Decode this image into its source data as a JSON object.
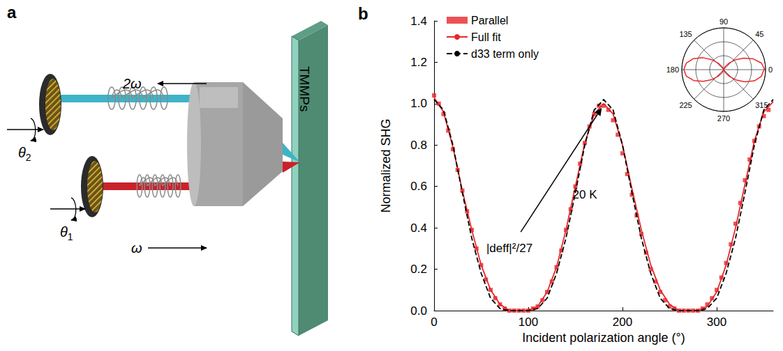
{
  "diagram": {
    "panel_label": "a",
    "beam_out": "2ω",
    "beam_in": "ω",
    "angle_out": "θ2",
    "angle_in": "θ1",
    "sample": "TMMPs"
  },
  "chart_data": {
    "type": "line",
    "panel_label": "b",
    "x_label": "Incident polarization angle (°)",
    "y_label": "Normalized SHG",
    "xlim": [
      0,
      360
    ],
    "xticks": [
      0,
      100,
      200,
      300
    ],
    "ylim": [
      0,
      1.4
    ],
    "yticks": [
      {
        "value": 0,
        "label": "0.0"
      },
      0.2,
      0.4,
      0.6,
      0.8,
      {
        "value": 1,
        "label": "1.0"
      },
      1.2,
      1.4
    ],
    "grid": false,
    "legend": "top-left",
    "series": [
      {
        "name": "Parallel",
        "type": "scatter",
        "marker": "square",
        "color": "#e8262a",
        "x": [
          0,
          5,
          10,
          15,
          20,
          25,
          30,
          35,
          40,
          45,
          50,
          55,
          60,
          65,
          70,
          75,
          80,
          85,
          90,
          95,
          100,
          105,
          110,
          115,
          120,
          125,
          130,
          135,
          140,
          145,
          150,
          155,
          160,
          165,
          170,
          175,
          180,
          185,
          190,
          195,
          200,
          205,
          210,
          215,
          220,
          225,
          230,
          235,
          240,
          245,
          250,
          255,
          260,
          265,
          270,
          275,
          280,
          285,
          290,
          295,
          300,
          305,
          310,
          315,
          320,
          325,
          330,
          335,
          340,
          345,
          350,
          355
        ],
        "values": [
          1.04,
          1.0,
          0.95,
          0.87,
          0.78,
          0.68,
          0.58,
          0.48,
          0.39,
          0.3,
          0.22,
          0.15,
          0.1,
          0.06,
          0.03,
          0.01,
          0,
          0,
          0,
          0,
          0,
          0.01,
          0.02,
          0.05,
          0.09,
          0.14,
          0.21,
          0.29,
          0.39,
          0.49,
          0.6,
          0.71,
          0.81,
          0.89,
          0.95,
          0.99,
          0.99,
          0.97,
          0.92,
          0.85,
          0.76,
          0.66,
          0.56,
          0.46,
          0.37,
          0.28,
          0.2,
          0.14,
          0.09,
          0.05,
          0.02,
          0.01,
          0,
          0,
          0,
          0,
          0,
          0.01,
          0.03,
          0.06,
          0.1,
          0.16,
          0.23,
          0.32,
          0.42,
          0.52,
          0.63,
          0.73,
          0.82,
          0.89,
          0.94,
          0.97
        ]
      },
      {
        "name": "Full fit",
        "type": "line",
        "line_style": "solid",
        "color": "#e8262a",
        "x": [
          0,
          10,
          20,
          30,
          40,
          50,
          60,
          70,
          80,
          90,
          100,
          110,
          120,
          130,
          140,
          150,
          160,
          170,
          180,
          190,
          200,
          210,
          220,
          230,
          240,
          250,
          260,
          270,
          280,
          290,
          300,
          310,
          320,
          330,
          340,
          350,
          360
        ],
        "values": [
          1.03,
          0.96,
          0.79,
          0.58,
          0.39,
          0.22,
          0.1,
          0.03,
          0,
          0,
          0,
          0.02,
          0.09,
          0.21,
          0.39,
          0.6,
          0.81,
          0.95,
          1.0,
          0.95,
          0.8,
          0.59,
          0.39,
          0.22,
          0.1,
          0.03,
          0,
          0,
          0,
          0.02,
          0.09,
          0.22,
          0.4,
          0.61,
          0.82,
          0.96,
          1.01
        ]
      },
      {
        "name": "d33 term only",
        "type": "line",
        "line_style": "dashed",
        "color": "#000000",
        "x": [
          0,
          10,
          20,
          30,
          40,
          50,
          60,
          70,
          80,
          90,
          100,
          110,
          120,
          130,
          140,
          150,
          160,
          170,
          180,
          190,
          200,
          210,
          220,
          230,
          240,
          250,
          260,
          270,
          280,
          290,
          300,
          310,
          320,
          330,
          340,
          350,
          360
        ],
        "values": [
          1.02,
          0.97,
          0.8,
          0.57,
          0.35,
          0.18,
          0.06,
          0.01,
          0,
          0,
          0,
          0.01,
          0.06,
          0.18,
          0.35,
          0.57,
          0.8,
          0.97,
          1.02,
          0.97,
          0.8,
          0.57,
          0.35,
          0.18,
          0.06,
          0.01,
          0,
          0,
          0,
          0.01,
          0.06,
          0.18,
          0.35,
          0.57,
          0.8,
          0.97,
          1.02
        ]
      }
    ],
    "annotations": [
      {
        "text": "|deff|²/27",
        "x": 80,
        "y": 0.3,
        "arrow_from": [
          92,
          0.38
        ],
        "arrow_to": [
          178,
          0.98
        ]
      },
      {
        "text": "20 K",
        "x": 160,
        "y": 0.56
      }
    ],
    "inset": {
      "type": "polar",
      "series": "Full fit",
      "color": "#e8262a",
      "alim": [
        0,
        360
      ],
      "angle_ticks": [
        0,
        45,
        90,
        135,
        180,
        225,
        270,
        315
      ],
      "rlim": [
        0,
        1.05
      ],
      "rticks": [
        0,
        0.35,
        0.7,
        1.05
      ]
    }
  }
}
